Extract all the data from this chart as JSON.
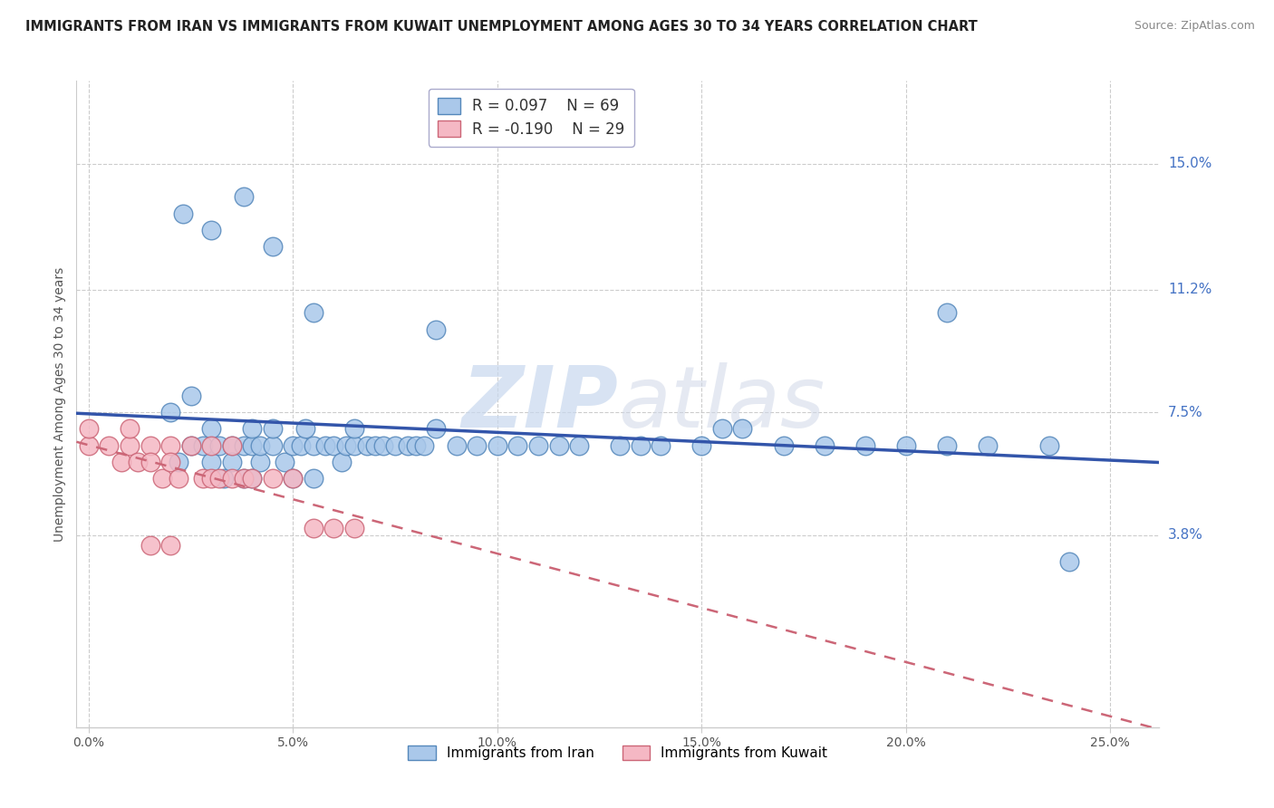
{
  "title": "IMMIGRANTS FROM IRAN VS IMMIGRANTS FROM KUWAIT UNEMPLOYMENT AMONG AGES 30 TO 34 YEARS CORRELATION CHART",
  "source": "Source: ZipAtlas.com",
  "ylabel": "Unemployment Among Ages 30 to 34 years",
  "x_ticks": [
    "0.0%",
    "5.0%",
    "10.0%",
    "15.0%",
    "20.0%",
    "25.0%"
  ],
  "x_tick_vals": [
    0.0,
    0.05,
    0.1,
    0.15,
    0.2,
    0.25
  ],
  "y_tick_labels": [
    "3.8%",
    "7.5%",
    "11.2%",
    "15.0%"
  ],
  "y_tick_vals": [
    0.038,
    0.075,
    0.112,
    0.15
  ],
  "xlim": [
    -0.003,
    0.262
  ],
  "ylim": [
    -0.02,
    0.175
  ],
  "iran_R": "0.097",
  "iran_N": "69",
  "kuwait_R": "-0.190",
  "kuwait_N": "29",
  "iran_color": "#aac8ea",
  "iran_edge": "#5588bb",
  "kuwait_color": "#f5b8c4",
  "kuwait_edge": "#cc6677",
  "iran_line_color": "#3355aa",
  "kuwait_line_color": "#cc6677",
  "watermark_zip": "ZIP",
  "watermark_atlas": "atlas",
  "iran_x": [
    0.02,
    0.022,
    0.025,
    0.025,
    0.028,
    0.03,
    0.03,
    0.032,
    0.033,
    0.035,
    0.035,
    0.038,
    0.038,
    0.04,
    0.04,
    0.04,
    0.042,
    0.042,
    0.045,
    0.045,
    0.048,
    0.05,
    0.05,
    0.052,
    0.053,
    0.055,
    0.055,
    0.058,
    0.06,
    0.062,
    0.063,
    0.065,
    0.065,
    0.068,
    0.07,
    0.072,
    0.075,
    0.078,
    0.08,
    0.082,
    0.085,
    0.09,
    0.095,
    0.1,
    0.105,
    0.11,
    0.115,
    0.12,
    0.13,
    0.135,
    0.14,
    0.15,
    0.155,
    0.16,
    0.17,
    0.18,
    0.19,
    0.2,
    0.21,
    0.22,
    0.023,
    0.03,
    0.038,
    0.045,
    0.055,
    0.085,
    0.21,
    0.235,
    0.24
  ],
  "iran_y": [
    0.075,
    0.06,
    0.065,
    0.08,
    0.065,
    0.06,
    0.07,
    0.065,
    0.055,
    0.065,
    0.06,
    0.065,
    0.055,
    0.065,
    0.07,
    0.055,
    0.06,
    0.065,
    0.065,
    0.07,
    0.06,
    0.065,
    0.055,
    0.065,
    0.07,
    0.065,
    0.055,
    0.065,
    0.065,
    0.06,
    0.065,
    0.065,
    0.07,
    0.065,
    0.065,
    0.065,
    0.065,
    0.065,
    0.065,
    0.065,
    0.07,
    0.065,
    0.065,
    0.065,
    0.065,
    0.065,
    0.065,
    0.065,
    0.065,
    0.065,
    0.065,
    0.065,
    0.07,
    0.07,
    0.065,
    0.065,
    0.065,
    0.065,
    0.065,
    0.065,
    0.135,
    0.13,
    0.14,
    0.125,
    0.105,
    0.1,
    0.105,
    0.065,
    0.03
  ],
  "kuwait_x": [
    0.0,
    0.0,
    0.005,
    0.008,
    0.01,
    0.01,
    0.012,
    0.015,
    0.015,
    0.018,
    0.02,
    0.02,
    0.022,
    0.025,
    0.028,
    0.03,
    0.03,
    0.032,
    0.035,
    0.035,
    0.038,
    0.04,
    0.045,
    0.05,
    0.055,
    0.06,
    0.065,
    0.015,
    0.02
  ],
  "kuwait_y": [
    0.065,
    0.07,
    0.065,
    0.06,
    0.065,
    0.07,
    0.06,
    0.065,
    0.06,
    0.055,
    0.065,
    0.06,
    0.055,
    0.065,
    0.055,
    0.055,
    0.065,
    0.055,
    0.055,
    0.065,
    0.055,
    0.055,
    0.055,
    0.055,
    0.04,
    0.04,
    0.04,
    0.035,
    0.035
  ]
}
